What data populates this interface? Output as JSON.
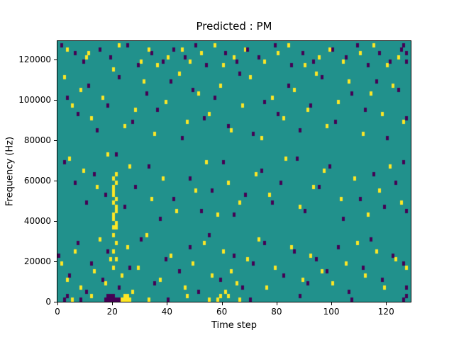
{
  "figure": {
    "title": "Predicted : PM",
    "xlabel": "Time step",
    "ylabel": "Frequency (Hz)"
  },
  "chart_data": {
    "type": "heatmap",
    "title": "Predicted : PM",
    "xlabel": "Time step",
    "ylabel": "Frequency (Hz)",
    "xlim": [
      0,
      129
    ],
    "ylim": [
      0,
      129000
    ],
    "x_ticks": [
      0,
      20,
      40,
      60,
      80,
      100,
      120
    ],
    "y_ticks": [
      0,
      20000,
      40000,
      60000,
      80000,
      100000,
      120000
    ],
    "grid": false,
    "legend": "none",
    "n_time_steps": 129,
    "n_freq_bins": 64,
    "bin_hz": 2000,
    "colors": {
      "background": "#21918c",
      "high": "#fde725",
      "low": "#440154"
    },
    "cells_high": [
      [
        3,
        62
      ],
      [
        10,
        60
      ],
      [
        11,
        61
      ],
      [
        22,
        63
      ],
      [
        30,
        59
      ],
      [
        33,
        62
      ],
      [
        36,
        58
      ],
      [
        40,
        60
      ],
      [
        45,
        62
      ],
      [
        48,
        59
      ],
      [
        52,
        61
      ],
      [
        57,
        63
      ],
      [
        60,
        58
      ],
      [
        64,
        60
      ],
      [
        68,
        62
      ],
      [
        75,
        59
      ],
      [
        80,
        61
      ],
      [
        84,
        63
      ],
      [
        90,
        58
      ],
      [
        95,
        60
      ],
      [
        99,
        62
      ],
      [
        104,
        59
      ],
      [
        110,
        61
      ],
      [
        115,
        63
      ],
      [
        120,
        58
      ],
      [
        124,
        60
      ],
      [
        2,
        55
      ],
      [
        5,
        48
      ],
      [
        8,
        52
      ],
      [
        12,
        45
      ],
      [
        16,
        50
      ],
      [
        20,
        57
      ],
      [
        24,
        43
      ],
      [
        28,
        47
      ],
      [
        31,
        54
      ],
      [
        35,
        41
      ],
      [
        39,
        49
      ],
      [
        44,
        56
      ],
      [
        47,
        44
      ],
      [
        51,
        51
      ],
      [
        55,
        46
      ],
      [
        59,
        53
      ],
      [
        63,
        42
      ],
      [
        67,
        48
      ],
      [
        70,
        55
      ],
      [
        74,
        40
      ],
      [
        78,
        50
      ],
      [
        82,
        45
      ],
      [
        86,
        52
      ],
      [
        91,
        47
      ],
      [
        94,
        56
      ],
      [
        98,
        43
      ],
      [
        102,
        49
      ],
      [
        106,
        54
      ],
      [
        111,
        41
      ],
      [
        114,
        51
      ],
      [
        118,
        46
      ],
      [
        122,
        53
      ],
      [
        126,
        44
      ],
      [
        20,
        30
      ],
      [
        20,
        28
      ],
      [
        20,
        26
      ],
      [
        21,
        31
      ],
      [
        20,
        24
      ],
      [
        21,
        22
      ],
      [
        20,
        20
      ],
      [
        21,
        18
      ],
      [
        20,
        16
      ],
      [
        21,
        14
      ],
      [
        20,
        12
      ],
      [
        21,
        10
      ],
      [
        20,
        8
      ],
      [
        21,
        29
      ],
      [
        20,
        27
      ],
      [
        21,
        25
      ],
      [
        21,
        23
      ],
      [
        20,
        21
      ],
      [
        21,
        19
      ],
      [
        20,
        18
      ],
      [
        4,
        35
      ],
      [
        9,
        32
      ],
      [
        14,
        28
      ],
      [
        18,
        36
      ],
      [
        26,
        33
      ],
      [
        34,
        25
      ],
      [
        38,
        30
      ],
      [
        43,
        22
      ],
      [
        50,
        27
      ],
      [
        54,
        34
      ],
      [
        58,
        21
      ],
      [
        62,
        29
      ],
      [
        66,
        24
      ],
      [
        72,
        31
      ],
      [
        77,
        26
      ],
      [
        83,
        35
      ],
      [
        88,
        23
      ],
      [
        93,
        28
      ],
      [
        97,
        32
      ],
      [
        103,
        25
      ],
      [
        108,
        30
      ],
      [
        113,
        21
      ],
      [
        117,
        27
      ],
      [
        121,
        33
      ],
      [
        125,
        24
      ],
      [
        1,
        9
      ],
      [
        3,
        5
      ],
      [
        6,
        12
      ],
      [
        8,
        3
      ],
      [
        13,
        7
      ],
      [
        15,
        15
      ],
      [
        17,
        4
      ],
      [
        19,
        10
      ],
      [
        23,
        6
      ],
      [
        25,
        13
      ],
      [
        27,
        2
      ],
      [
        29,
        8
      ],
      [
        32,
        16
      ],
      [
        37,
        5
      ],
      [
        41,
        11
      ],
      [
        46,
        3
      ],
      [
        49,
        9
      ],
      [
        53,
        14
      ],
      [
        56,
        6
      ],
      [
        60,
        12
      ],
      [
        61,
        2
      ],
      [
        63,
        7
      ],
      [
        65,
        4
      ],
      [
        69,
        10
      ],
      [
        73,
        15
      ],
      [
        76,
        3
      ],
      [
        79,
        8
      ],
      [
        85,
        13
      ],
      [
        89,
        5
      ],
      [
        92,
        11
      ],
      [
        96,
        7
      ],
      [
        100,
        4
      ],
      [
        105,
        9
      ],
      [
        109,
        14
      ],
      [
        112,
        6
      ],
      [
        116,
        12
      ],
      [
        119,
        3
      ],
      [
        123,
        10
      ],
      [
        127,
        8
      ],
      [
        23,
        0
      ],
      [
        24,
        0
      ],
      [
        25,
        0
      ],
      [
        26,
        0
      ],
      [
        24,
        1
      ],
      [
        25,
        1
      ],
      [
        5,
        0
      ],
      [
        12,
        1
      ],
      [
        33,
        0
      ],
      [
        47,
        1
      ],
      [
        55,
        0
      ],
      [
        62,
        1
      ],
      [
        66,
        0
      ],
      [
        58,
        0
      ],
      [
        59,
        1
      ]
    ],
    "cells_low": [
      [
        1,
        63
      ],
      [
        6,
        61
      ],
      [
        9,
        59
      ],
      [
        15,
        62
      ],
      [
        19,
        60
      ],
      [
        25,
        63
      ],
      [
        29,
        58
      ],
      [
        34,
        61
      ],
      [
        38,
        59
      ],
      [
        42,
        62
      ],
      [
        46,
        60
      ],
      [
        50,
        63
      ],
      [
        54,
        58
      ],
      [
        61,
        61
      ],
      [
        65,
        59
      ],
      [
        69,
        62
      ],
      [
        73,
        60
      ],
      [
        79,
        63
      ],
      [
        85,
        58
      ],
      [
        89,
        61
      ],
      [
        93,
        59
      ],
      [
        100,
        62
      ],
      [
        105,
        60
      ],
      [
        109,
        63
      ],
      [
        113,
        58
      ],
      [
        117,
        61
      ],
      [
        121,
        59
      ],
      [
        125,
        62
      ],
      [
        126,
        63
      ],
      [
        127,
        61
      ],
      [
        127,
        59
      ],
      [
        3,
        50
      ],
      [
        7,
        46
      ],
      [
        11,
        53
      ],
      [
        14,
        42
      ],
      [
        18,
        48
      ],
      [
        22,
        55
      ],
      [
        27,
        44
      ],
      [
        32,
        51
      ],
      [
        36,
        47
      ],
      [
        41,
        54
      ],
      [
        45,
        40
      ],
      [
        49,
        52
      ],
      [
        53,
        45
      ],
      [
        57,
        50
      ],
      [
        62,
        43
      ],
      [
        66,
        56
      ],
      [
        71,
        41
      ],
      [
        75,
        49
      ],
      [
        80,
        46
      ],
      [
        84,
        53
      ],
      [
        88,
        42
      ],
      [
        92,
        48
      ],
      [
        96,
        55
      ],
      [
        101,
        44
      ],
      [
        107,
        51
      ],
      [
        112,
        47
      ],
      [
        116,
        54
      ],
      [
        120,
        40
      ],
      [
        124,
        52
      ],
      [
        127,
        45
      ],
      [
        2,
        34
      ],
      [
        6,
        29
      ],
      [
        10,
        24
      ],
      [
        13,
        31
      ],
      [
        17,
        26
      ],
      [
        21,
        36
      ],
      [
        24,
        23
      ],
      [
        28,
        28
      ],
      [
        33,
        33
      ],
      [
        37,
        20
      ],
      [
        42,
        25
      ],
      [
        48,
        30
      ],
      [
        52,
        22
      ],
      [
        56,
        27
      ],
      [
        60,
        34
      ],
      [
        64,
        21
      ],
      [
        68,
        26
      ],
      [
        74,
        32
      ],
      [
        78,
        24
      ],
      [
        81,
        29
      ],
      [
        87,
        35
      ],
      [
        90,
        22
      ],
      [
        95,
        28
      ],
      [
        99,
        33
      ],
      [
        104,
        20
      ],
      [
        110,
        25
      ],
      [
        115,
        31
      ],
      [
        119,
        23
      ],
      [
        123,
        29
      ],
      [
        126,
        34
      ],
      [
        127,
        22
      ],
      [
        0,
        11
      ],
      [
        4,
        6
      ],
      [
        7,
        14
      ],
      [
        10,
        2
      ],
      [
        12,
        9
      ],
      [
        16,
        5
      ],
      [
        18,
        12
      ],
      [
        22,
        3
      ],
      [
        26,
        8
      ],
      [
        30,
        15
      ],
      [
        35,
        4
      ],
      [
        39,
        10
      ],
      [
        44,
        7
      ],
      [
        48,
        13
      ],
      [
        51,
        2
      ],
      [
        55,
        16
      ],
      [
        59,
        5
      ],
      [
        64,
        11
      ],
      [
        67,
        3
      ],
      [
        71,
        9
      ],
      [
        75,
        14
      ],
      [
        82,
        6
      ],
      [
        86,
        12
      ],
      [
        91,
        4
      ],
      [
        94,
        10
      ],
      [
        98,
        7
      ],
      [
        102,
        13
      ],
      [
        106,
        2
      ],
      [
        111,
        8
      ],
      [
        114,
        15
      ],
      [
        118,
        5
      ],
      [
        122,
        11
      ],
      [
        126,
        9
      ],
      [
        127,
        3
      ],
      [
        17,
        0
      ],
      [
        18,
        0
      ],
      [
        19,
        0
      ],
      [
        20,
        0
      ],
      [
        21,
        0
      ],
      [
        22,
        0
      ],
      [
        18,
        1
      ],
      [
        19,
        1
      ],
      [
        20,
        1
      ],
      [
        2,
        0
      ],
      [
        3,
        1
      ],
      [
        8,
        0
      ],
      [
        40,
        0
      ],
      [
        70,
        0
      ],
      [
        88,
        1
      ],
      [
        107,
        0
      ],
      [
        126,
        0
      ],
      [
        127,
        1
      ]
    ]
  }
}
